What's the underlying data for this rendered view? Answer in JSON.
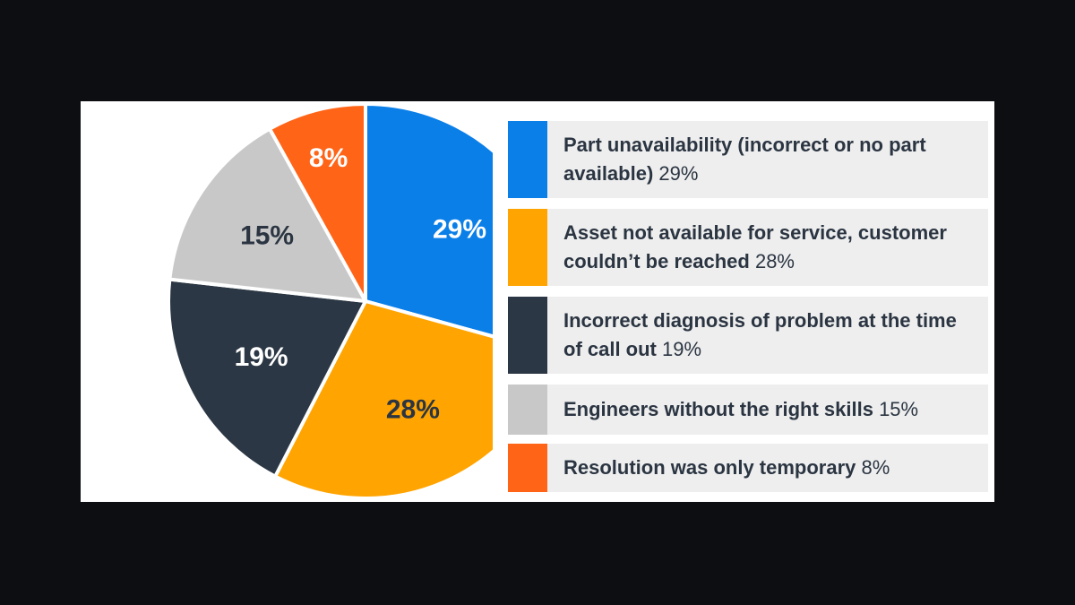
{
  "chart_data": {
    "type": "pie",
    "slices": [
      {
        "label": "Part unavailability (incorrect or no part available)",
        "value": 29,
        "value_label": "29%",
        "legend_value": "29%",
        "color": "#0a7fe8",
        "label_color": "#ffffff"
      },
      {
        "label": "Asset not available for service, customer couldn’t be reached",
        "value": 28,
        "value_label": "28%",
        "legend_value": "28%",
        "color": "#ffa400",
        "label_color": "#2b3542"
      },
      {
        "label": "Incorrect diagnosis of problem at the time of call out",
        "value": 19,
        "value_label": "19%",
        "legend_value": "19%",
        "color": "#2b3744",
        "label_color": "#ffffff"
      },
      {
        "label": "Engineers without the right skills",
        "value": 15,
        "value_label": "15%",
        "legend_value": "15%",
        "color": "#c8c8c8",
        "label_color": "#2b3542"
      },
      {
        "label": "Resolution was only temporary",
        "value": 8,
        "value_label": "8%",
        "legend_value": "8%",
        "color": "#ff6417",
        "label_color": "#ffffff"
      }
    ],
    "legend_position": "right"
  }
}
